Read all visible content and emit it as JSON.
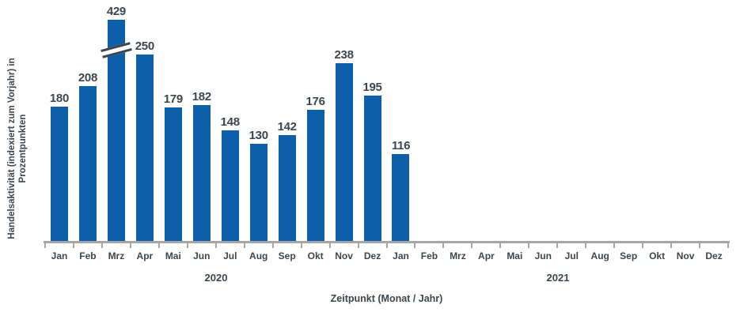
{
  "chart_data": {
    "type": "bar",
    "ylabel_line1": "Handelsaktivität (indexiert zum Vorjahr) in",
    "ylabel_line2": "Prozentpunkten",
    "xlabel": "Zeitpunkt (Monat / Jahr)",
    "categories": [
      "Jan",
      "Feb",
      "Mrz",
      "Apr",
      "Mai",
      "Jun",
      "Jul",
      "Aug",
      "Sep",
      "Okt",
      "Nov",
      "Dez",
      "Jan",
      "Feb",
      "Mrz",
      "Apr",
      "Mai",
      "Jun",
      "Jul",
      "Aug",
      "Sep",
      "Okt",
      "Nov",
      "Dez"
    ],
    "years": [
      {
        "label": "2020"
      },
      {
        "label": "2021"
      }
    ],
    "values": [
      180,
      208,
      429,
      250,
      179,
      182,
      148,
      130,
      142,
      176,
      238,
      195,
      116
    ],
    "broken_bar_index": 2,
    "axis_break": true,
    "legend": "none",
    "grid": "off",
    "bar_color": "#0e5fa9",
    "label_color": "#3b4750",
    "axis_color": "#a6a6a6",
    "background_color": "#ffffff"
  }
}
